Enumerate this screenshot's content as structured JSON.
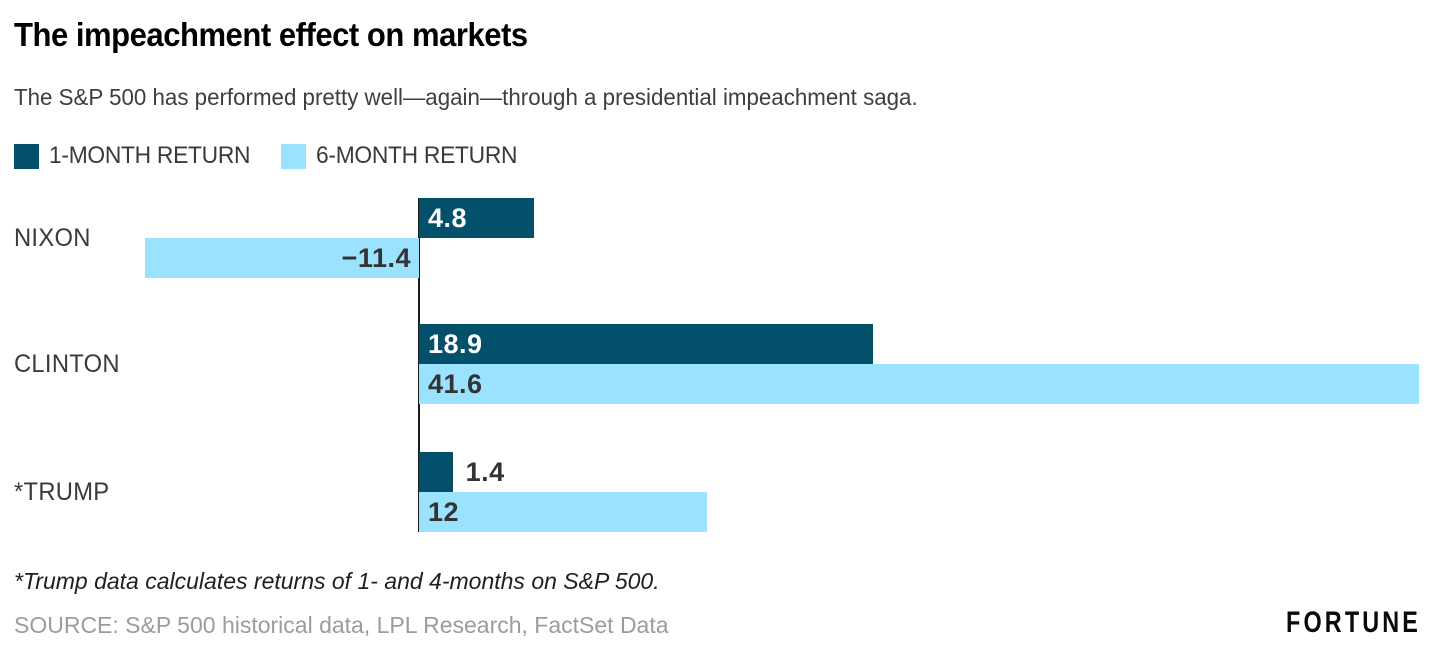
{
  "header": {
    "title": "The impeachment effect on markets",
    "subtitle": "The S&P 500 has performed pretty well—again—through a presidential impeachment saga."
  },
  "legend": [
    {
      "label": "1-MONTH RETURN",
      "color": "#03506B"
    },
    {
      "label": "6-MONTH RETURN",
      "color": "#9AE2FD"
    }
  ],
  "chart_data": {
    "type": "bar",
    "orientation": "horizontal",
    "categories": [
      "NIXON",
      "CLINTON",
      "*TRUMP"
    ],
    "series": [
      {
        "name": "1-MONTH RETURN",
        "color": "#03506B",
        "values": [
          4.8,
          18.9,
          1.4
        ],
        "value_labels": [
          "4.8",
          "18.9",
          "1.4"
        ]
      },
      {
        "name": "6-MONTH RETURN",
        "color": "#9AE2FD",
        "values": [
          -11.4,
          41.6,
          12
        ],
        "value_labels": [
          "−11.4",
          "41.6",
          "12"
        ]
      }
    ],
    "xlim": [
      -11.4,
      41.6
    ],
    "grid": false,
    "legend_position": "top",
    "baseline_axis": true,
    "title": "The impeachment effect on markets",
    "xlabel": "",
    "ylabel": ""
  },
  "footer": {
    "footnote": "*Trump data calculates returns of 1- and 4-months on S&P 500.",
    "source": "SOURCE: S&P 500 historical data, LPL Research, FactSet Data",
    "brand": "FORTUNE"
  },
  "colors": {
    "series_dark": "#03506B",
    "series_light": "#9AE2FD",
    "axis": "#1a1a1a",
    "label_on_dark": "#ffffff",
    "label_on_light": "#333333",
    "source_text": "#9c9c9c"
  }
}
